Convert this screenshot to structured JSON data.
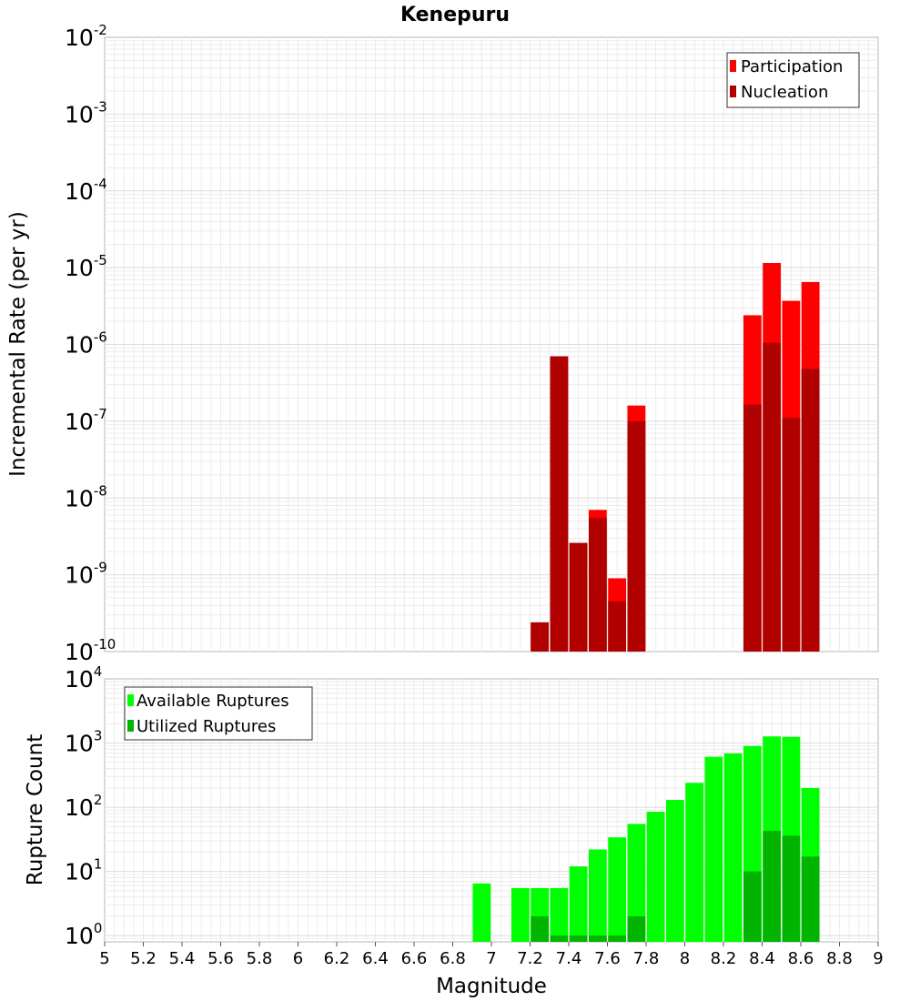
{
  "title": "Kenepuru",
  "xlabel": "Magnitude",
  "x_ticks": [
    "5",
    "5.2",
    "5.4",
    "5.6",
    "5.8",
    "6",
    "6.2",
    "6.4",
    "6.6",
    "6.8",
    "7",
    "7.2",
    "7.4",
    "7.6",
    "7.8",
    "8",
    "8.2",
    "8.4",
    "8.6",
    "8.8",
    "9"
  ],
  "colors": {
    "participation": "#ff0000",
    "nucleation": "#b00000",
    "available": "#00ff00",
    "utilized": "#00b400"
  },
  "chart_data": [
    {
      "type": "bar",
      "ylabel": "Incremental Rate (per yr)",
      "yscale": "log",
      "xlim": [
        5,
        9
      ],
      "ylim": [
        1e-10,
        0.01
      ],
      "y_ticks": [
        {
          "base": "10",
          "exp": "-2",
          "value": 0.01
        },
        {
          "base": "10",
          "exp": "-3",
          "value": 0.001
        },
        {
          "base": "10",
          "exp": "-4",
          "value": 0.0001
        },
        {
          "base": "10",
          "exp": "-5",
          "value": 1e-05
        },
        {
          "base": "10",
          "exp": "-6",
          "value": 1e-06
        },
        {
          "base": "10",
          "exp": "-7",
          "value": 1e-07
        },
        {
          "base": "10",
          "exp": "-8",
          "value": 1e-08
        },
        {
          "base": "10",
          "exp": "-9",
          "value": 1e-09
        },
        {
          "base": "10",
          "exp": "-10",
          "value": 1e-10
        }
      ],
      "legend_position": "top-right",
      "grid": true,
      "series": [
        {
          "name": "Participation",
          "x": [
            7.25,
            7.35,
            7.45,
            7.55,
            7.65,
            7.75,
            8.35,
            8.45,
            8.55,
            8.65
          ],
          "values": [
            2.4e-10,
            7e-07,
            2.6e-09,
            7e-09,
            9e-10,
            1.6e-07,
            2.4e-06,
            1.15e-05,
            3.7e-06,
            6.5e-06
          ]
        },
        {
          "name": "Nucleation",
          "x": [
            7.25,
            7.35,
            7.45,
            7.55,
            7.65,
            7.75,
            8.35,
            8.45,
            8.55,
            8.65
          ],
          "values": [
            2.4e-10,
            7e-07,
            2.6e-09,
            5.5e-09,
            4.5e-10,
            1e-07,
            1.65e-07,
            1.05e-06,
            1.1e-07,
            4.8e-07
          ]
        }
      ]
    },
    {
      "type": "bar",
      "ylabel": "Rupture Count",
      "yscale": "log",
      "xlim": [
        5,
        9
      ],
      "ylim": [
        0.8,
        10000
      ],
      "y_ticks": [
        {
          "base": "10",
          "exp": "4",
          "value": 10000
        },
        {
          "base": "10",
          "exp": "3",
          "value": 1000
        },
        {
          "base": "10",
          "exp": "2",
          "value": 100
        },
        {
          "base": "10",
          "exp": "1",
          "value": 10
        },
        {
          "base": "10",
          "exp": "0",
          "value": 1
        }
      ],
      "legend_position": "top-left",
      "grid": true,
      "series": [
        {
          "name": "Available Ruptures",
          "x": [
            6.95,
            7.15,
            7.25,
            7.35,
            7.45,
            7.55,
            7.65,
            7.75,
            7.85,
            7.95,
            8.05,
            8.15,
            8.25,
            8.35,
            8.45,
            8.55,
            8.65
          ],
          "values": [
            6.5,
            5.5,
            5.5,
            5.5,
            12,
            22,
            34,
            55,
            85,
            130,
            240,
            610,
            690,
            900,
            1270,
            1250,
            200
          ]
        },
        {
          "name": "Utilized Ruptures",
          "x": [
            7.25,
            7.35,
            7.45,
            7.55,
            7.65,
            7.75,
            8.35,
            8.45,
            8.55,
            8.65
          ],
          "values": [
            2,
            1,
            1,
            1,
            1,
            2,
            10,
            43,
            36,
            17
          ]
        }
      ]
    }
  ]
}
